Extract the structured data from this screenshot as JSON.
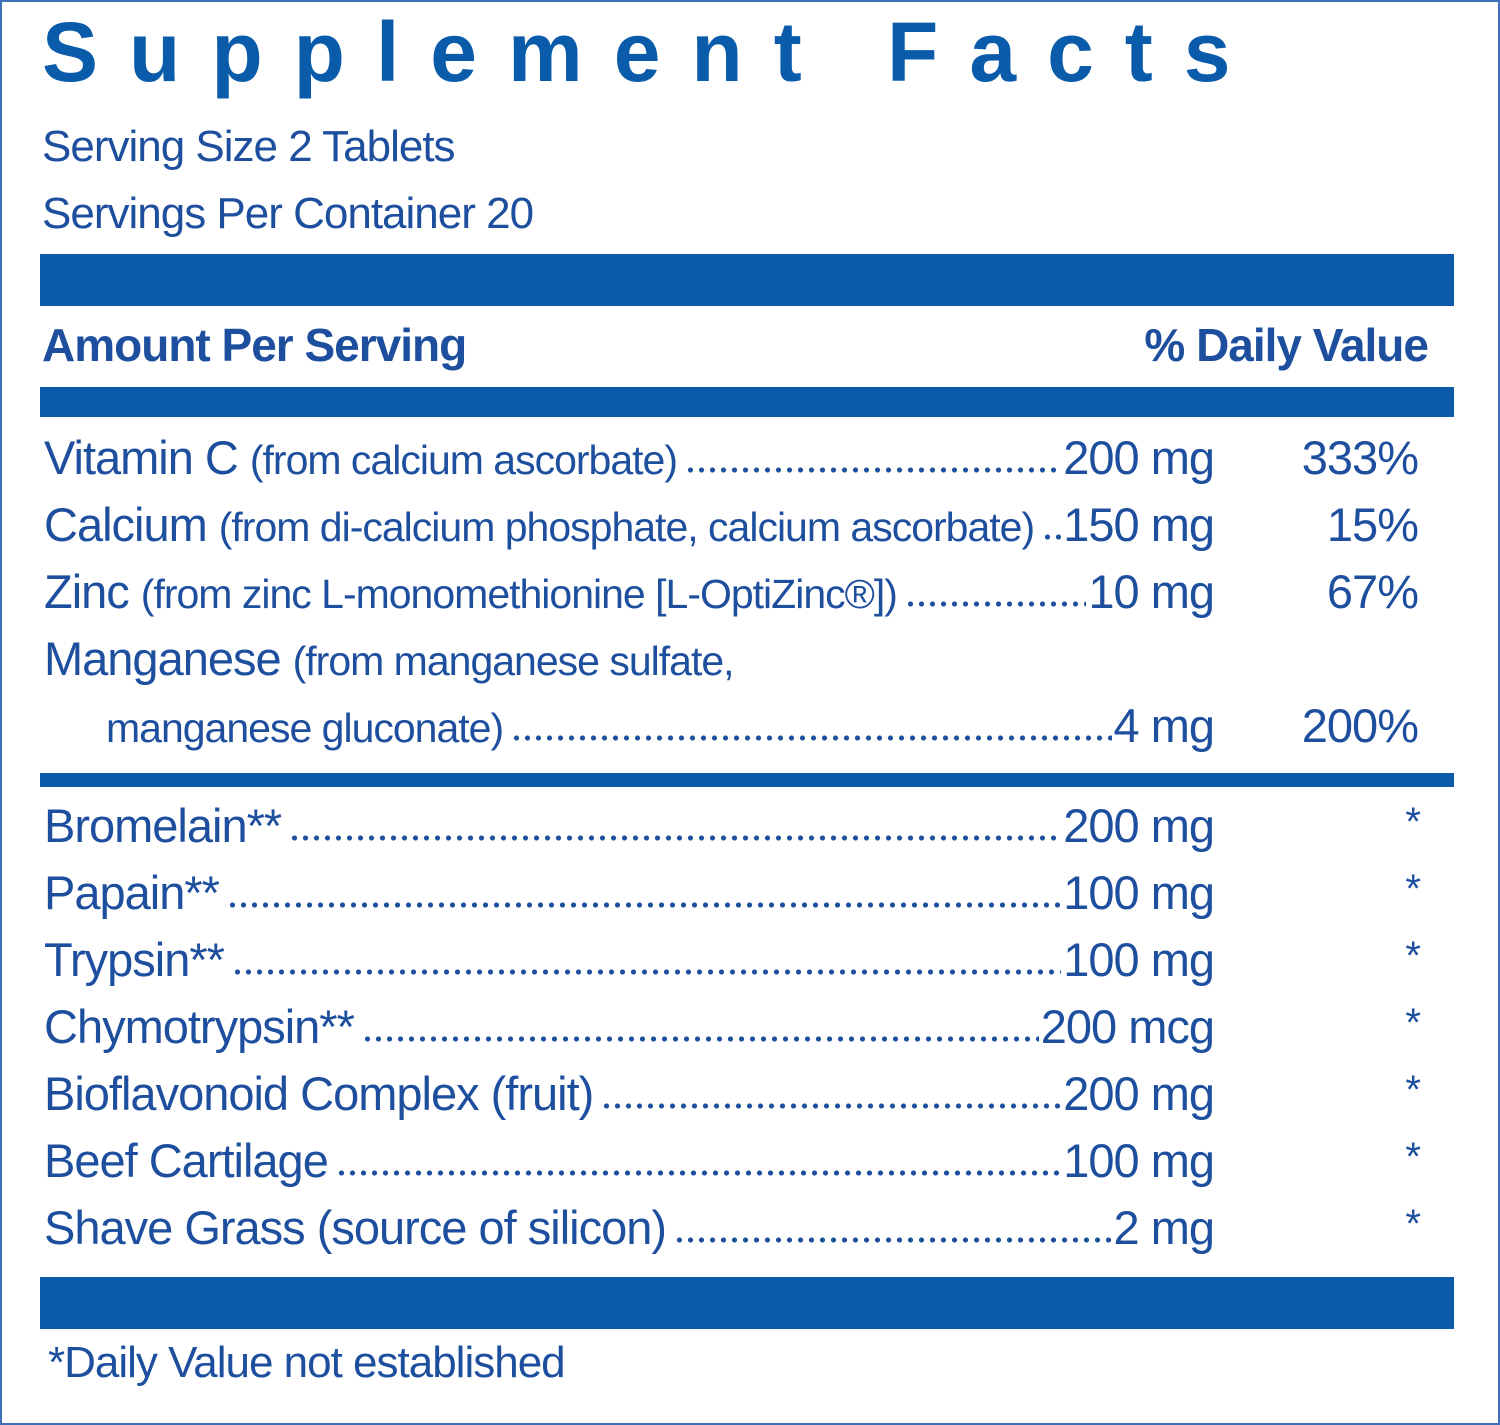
{
  "title": "Supplement Facts",
  "serving_size": "Serving Size 2 Tablets",
  "servings_per_container": "Servings Per Container 20",
  "header": {
    "amount": "Amount Per Serving",
    "daily_value": "% Daily Value"
  },
  "nutrients": [
    {
      "name": "Vitamin C",
      "source_lines": [
        "(from calcium ascorbate)"
      ],
      "amount": "200 mg",
      "daily_value": "333%"
    },
    {
      "name": "Calcium",
      "source_lines": [
        "(from di-calcium phosphate, calcium ascorbate)"
      ],
      "amount": "150 mg",
      "daily_value": "15%"
    },
    {
      "name": "Zinc",
      "source_lines": [
        "(from zinc L-monomethionine [L-OptiZinc®])"
      ],
      "amount": "10 mg",
      "daily_value": "67%"
    },
    {
      "name": "Manganese",
      "source_lines": [
        "(from manganese sulfate,",
        "manganese gluconate)"
      ],
      "amount": "4 mg",
      "daily_value": "200%"
    }
  ],
  "other_ingredients": [
    {
      "name": "Bromelain**",
      "amount": "200 mg",
      "daily_value": "*"
    },
    {
      "name": "Papain**",
      "amount": "100 mg",
      "daily_value": "*"
    },
    {
      "name": "Trypsin**",
      "amount": "100 mg",
      "daily_value": "*"
    },
    {
      "name": "Chymotrypsin**",
      "amount": "200 mcg",
      "daily_value": "*"
    },
    {
      "name": "Bioflavonoid Complex (fruit)",
      "amount": "200 mg",
      "daily_value": "*"
    },
    {
      "name": "Beef Cartilage",
      "amount": "100 mg",
      "daily_value": "*"
    },
    {
      "name": "Shave Grass (source of silicon)",
      "amount": "2 mg",
      "daily_value": "*"
    }
  ],
  "footnote": "*Daily Value not established"
}
